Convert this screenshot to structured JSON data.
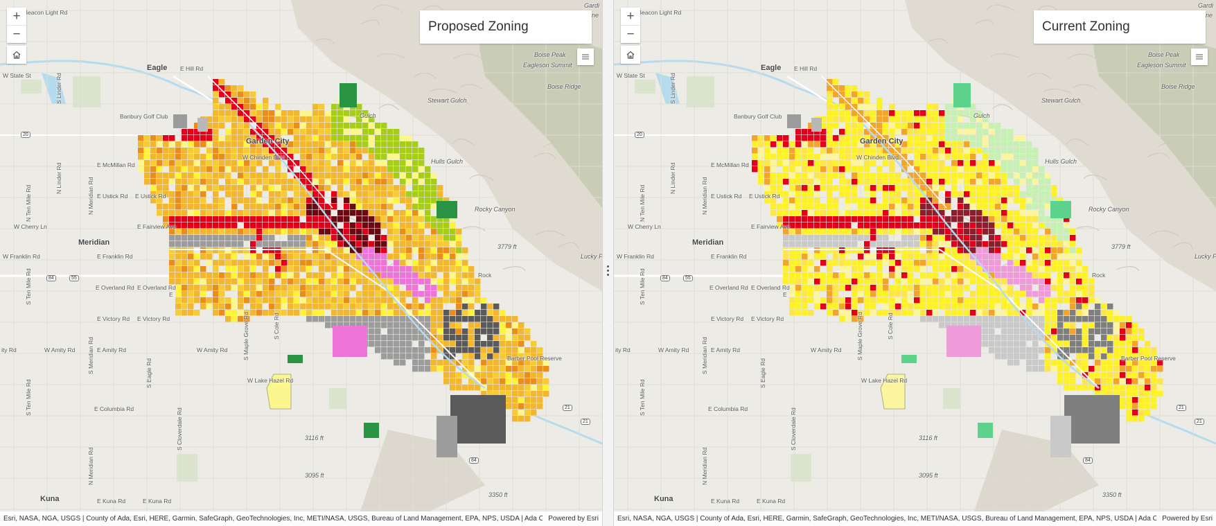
{
  "maps": [
    {
      "title": "Proposed Zoning",
      "scheme": "proposed",
      "attribution": "Esri, NASA, NGA, USGS | County of Ada, Esri, HERE, Garmin, SafeGraph, GeoTechnologies, Inc, METI/NASA, USGS, Bureau of Land Management, EPA, NPS, USDA | Ada County Assessors Office.",
      "powered_by": "Powered by Esri"
    },
    {
      "title": "Current Zoning",
      "scheme": "current",
      "attribution": "Esri, NASA, NGA, USGS | County of Ada, Esri, HERE, Garmin, SafeGraph, GeoTechnologies, Inc, METI/NASA, USGS, Bureau of Land Management, EPA, NPS, USDA | Ada County Assessors Office.",
      "powered_by": "Powered by Esri"
    }
  ],
  "controls": {
    "zoom_in": "+",
    "zoom_out": "−"
  },
  "labels": {
    "beacon_light": "W Beacon Light Rd",
    "eagle": "Eagle",
    "e_hill": "E Hill Rd",
    "w_state": "W State St",
    "banbury": "Banbury Golf Club",
    "garden_city": "Garden City",
    "chinden": "W Chinden Blvd",
    "mcmillan": "E McMillan Rd",
    "ustick_a": "E Ustick Rd",
    "ustick_b": "E Ustick Rd",
    "cherry": "W Cherry Ln",
    "fairview": "E Fairview Ave",
    "meridian": "Meridian",
    "franklin_a": "W Franklin Rd",
    "franklin_b": "E Franklin Rd",
    "overland_a": "E Overland Rd",
    "overland_b": "E Overland Rd",
    "victory_a": "E Victory Rd",
    "victory_b": "E Victory Rd",
    "amity_a": "W Amity Rd",
    "amity_b": "E Amity Rd",
    "amity_c": "W Amity Rd",
    "lake_hazel": "W Lake Hazel Rd",
    "columbia": "E Columbia Rd",
    "kuna": "Kuna",
    "kuna_rd": "E Kuna Rd",
    "kuna_rd_b": "E Kuna Rd",
    "boise_peak": "Boise Peak",
    "eagleson": "Eagleson Summit",
    "stewart": "Stewart Gulch",
    "hulls": "Hulls Gulch",
    "rocky": "Rocky Canyon",
    "boise_ridge": "Boise Ridge",
    "lucky_peak": "Lucky P",
    "barber": "Barber Pool Reserve",
    "elev_3779": "3779 ft",
    "elev_3116": "3116 ft",
    "elev_3095": "3095 ft",
    "elev_3350": "3350 ft",
    "gardin": "Gardi",
    "ne": "ne",
    "rock": "Rock",
    "hwy_20": "20",
    "hwy_84a": "84",
    "hwy_55": "55",
    "hwy_84b": "84",
    "hwy_21a": "21",
    "hwy_21b": "21",
    "ten_mile": "S Ten Mile Rd",
    "ten_mile_n": "N Ten Mile Rd",
    "linder": "N Linder Rd",
    "linder_s": "S Linder Rd",
    "meridian_rd": "N Meridian Rd",
    "meridian_s": "S Meridian Rd",
    "meridian_n2": "N Meridian Rd",
    "eagle_rd": "S Eagle Rd",
    "cloverdale": "S Cloverdale Rd",
    "maple_grove": "S Maple Grove Rd",
    "cole": "S Cole Rd",
    "ten_mile_s2": "S Ten Mile Rd",
    "gulch": "Gulch",
    "eagle_small": "E",
    "ity_rd": "ity Rd",
    "kuna_rd_c": "E Kuna Rd"
  },
  "colors": {
    "proposed": {
      "main": "#f2b72f",
      "mid": "#f6cb35",
      "orange": "#eb8d1a",
      "yellow": "#fff33a",
      "lightyellow": "#fbf68d",
      "red": "#e3001a",
      "darkred": "#6b0912",
      "pink": "#ef74d8",
      "lime": "#a6cd18",
      "green": "#2a9445",
      "gray": "#9c9c9c",
      "darkgray": "#5a5a5a"
    },
    "current": {
      "main": "#fdf12a",
      "mid": "#fde64a",
      "orange": "#f3a42a",
      "yellow": "#fff33a",
      "lightyellow": "#fbf59f",
      "red": "#e3001a",
      "darkred": "#8a1e2d",
      "pink": "#ef9ad9",
      "lime": "#c7f0b5",
      "green": "#5dd28d",
      "gray": "#c9c9c9",
      "darkgray": "#7f7f7f"
    }
  },
  "icons": {
    "zoom_in": "plus-icon",
    "zoom_out": "minus-icon",
    "home": "home-icon",
    "legend": "list-icon",
    "route": "highway-shield-icon"
  }
}
